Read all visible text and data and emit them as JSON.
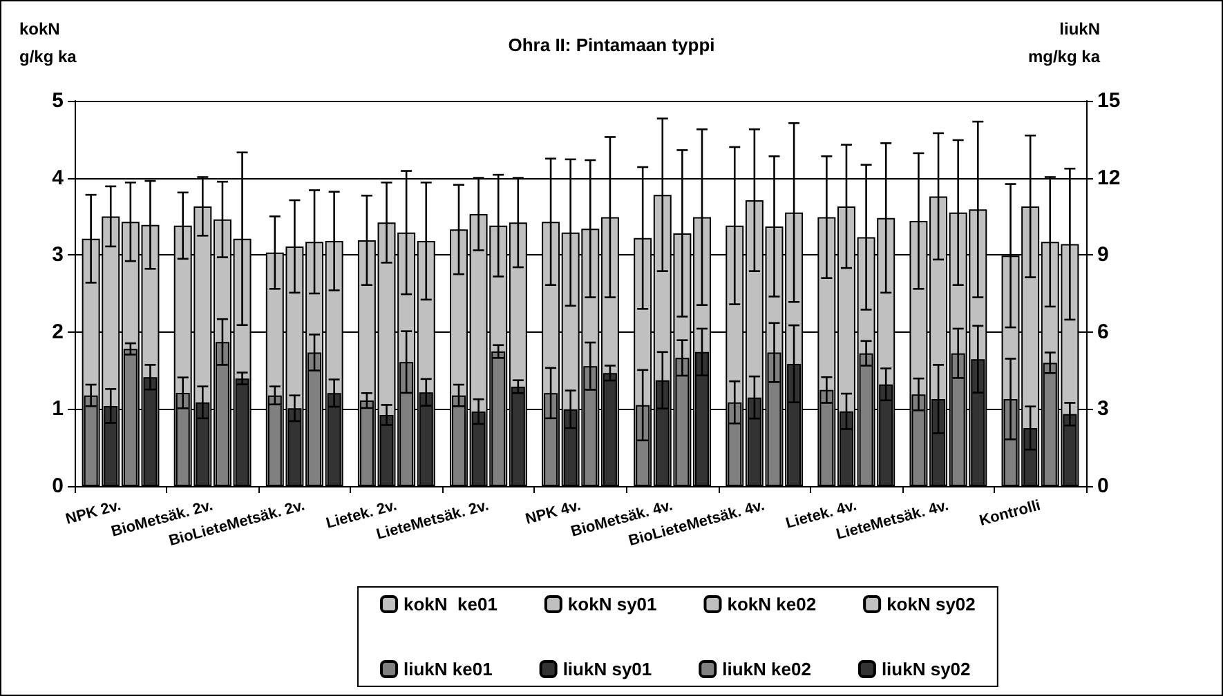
{
  "chart_data": {
    "type": "bar",
    "title": "Ohra II: Pintamaan typpi",
    "ylabel": "kokN\ng/kg ka",
    "y2label": "liukN\nmg/kg ka",
    "categories": [
      "NPK 2v.",
      "BioMetsäk. 2v.",
      "BioLieteMetsäk. 2v.",
      "Lietek. 2v.",
      "LieteMetsäk. 2v.",
      "NPK 4v.",
      "BioMetsäk. 4v.",
      "BioLieteMetsäk. 4v.",
      "Lietek. 4v.",
      "LieteMetsäk. 4v.",
      "Kontrolli"
    ],
    "series": [
      {
        "name": "kokN  ke01",
        "color": "#c0c0c0",
        "values": [
          3.21,
          3.38,
          3.03,
          3.19,
          3.33,
          3.43,
          3.22,
          3.38,
          3.49,
          3.44,
          2.99
        ],
        "errors": [
          0.57,
          0.43,
          0.47,
          0.58,
          0.58,
          0.82,
          0.92,
          1.02,
          0.79,
          0.88,
          0.93
        ]
      },
      {
        "name": "kokN sy01",
        "color": "#c0c0c0",
        "values": [
          3.5,
          3.63,
          3.11,
          3.42,
          3.53,
          3.29,
          3.78,
          3.71,
          3.63,
          3.76,
          3.63
        ],
        "errors": [
          0.39,
          0.38,
          0.6,
          0.52,
          0.47,
          0.95,
          0.99,
          0.92,
          0.8,
          0.82,
          0.92
        ]
      },
      {
        "name": "kokN ke02",
        "color": "#c0c0c0",
        "values": [
          3.43,
          3.46,
          3.17,
          3.29,
          3.38,
          3.34,
          3.28,
          3.37,
          3.23,
          3.55,
          3.17
        ],
        "errors": [
          0.51,
          0.49,
          0.67,
          0.8,
          0.66,
          0.89,
          1.08,
          0.91,
          0.94,
          0.94,
          0.84
        ]
      },
      {
        "name": "kokN sy02",
        "color": "#c0c0c0",
        "values": [
          3.39,
          3.21,
          3.18,
          3.18,
          3.42,
          3.49,
          3.49,
          3.55,
          3.48,
          3.59,
          3.14
        ],
        "errors": [
          0.57,
          1.12,
          0.64,
          0.76,
          0.58,
          1.04,
          1.14,
          1.16,
          0.97,
          1.14,
          0.98
        ]
      },
      {
        "name": "liukN ke01",
        "color": "#808080",
        "axis": "y2",
        "values": [
          3.53,
          3.63,
          3.53,
          3.33,
          3.53,
          3.62,
          3.15,
          3.26,
          3.74,
          3.57,
          3.39
        ],
        "errors": [
          0.42,
          0.6,
          0.35,
          0.29,
          0.42,
          0.98,
          1.37,
          0.82,
          0.5,
          0.62,
          1.57
        ]
      },
      {
        "name": "liukN sy01",
        "color": "#333333",
        "axis": "y2",
        "values": [
          3.12,
          3.26,
          3.03,
          2.77,
          2.9,
          2.99,
          4.12,
          3.45,
          2.91,
          3.39,
          2.26
        ],
        "errors": [
          0.66,
          0.62,
          0.5,
          0.39,
          0.48,
          0.73,
          1.1,
          0.82,
          0.69,
          1.33,
          0.84
        ]
      },
      {
        "name": "liukN ke02",
        "color": "#808080",
        "axis": "y2",
        "values": [
          5.34,
          5.61,
          5.2,
          4.83,
          5.24,
          4.67,
          4.99,
          5.2,
          5.17,
          5.17,
          4.8
        ],
        "errors": [
          0.22,
          0.89,
          0.7,
          1.2,
          0.25,
          0.92,
          0.69,
          1.15,
          0.48,
          0.96,
          0.4
        ]
      },
      {
        "name": "liukN sy02",
        "color": "#333333",
        "axis": "y2",
        "values": [
          4.24,
          4.19,
          3.62,
          3.65,
          3.87,
          4.4,
          5.22,
          4.76,
          3.96,
          4.94,
          2.8
        ],
        "errors": [
          0.48,
          0.23,
          0.53,
          0.52,
          0.25,
          0.29,
          0.91,
          1.5,
          0.62,
          1.3,
          0.44
        ]
      }
    ],
    "ylim": [
      0,
      5
    ],
    "yticks": [
      0,
      1,
      2,
      3,
      4,
      5
    ],
    "y2lim": [
      0,
      15
    ],
    "y2ticks": [
      0,
      3,
      6,
      9,
      12,
      15
    ],
    "grid": "y",
    "legend": "bottom"
  }
}
